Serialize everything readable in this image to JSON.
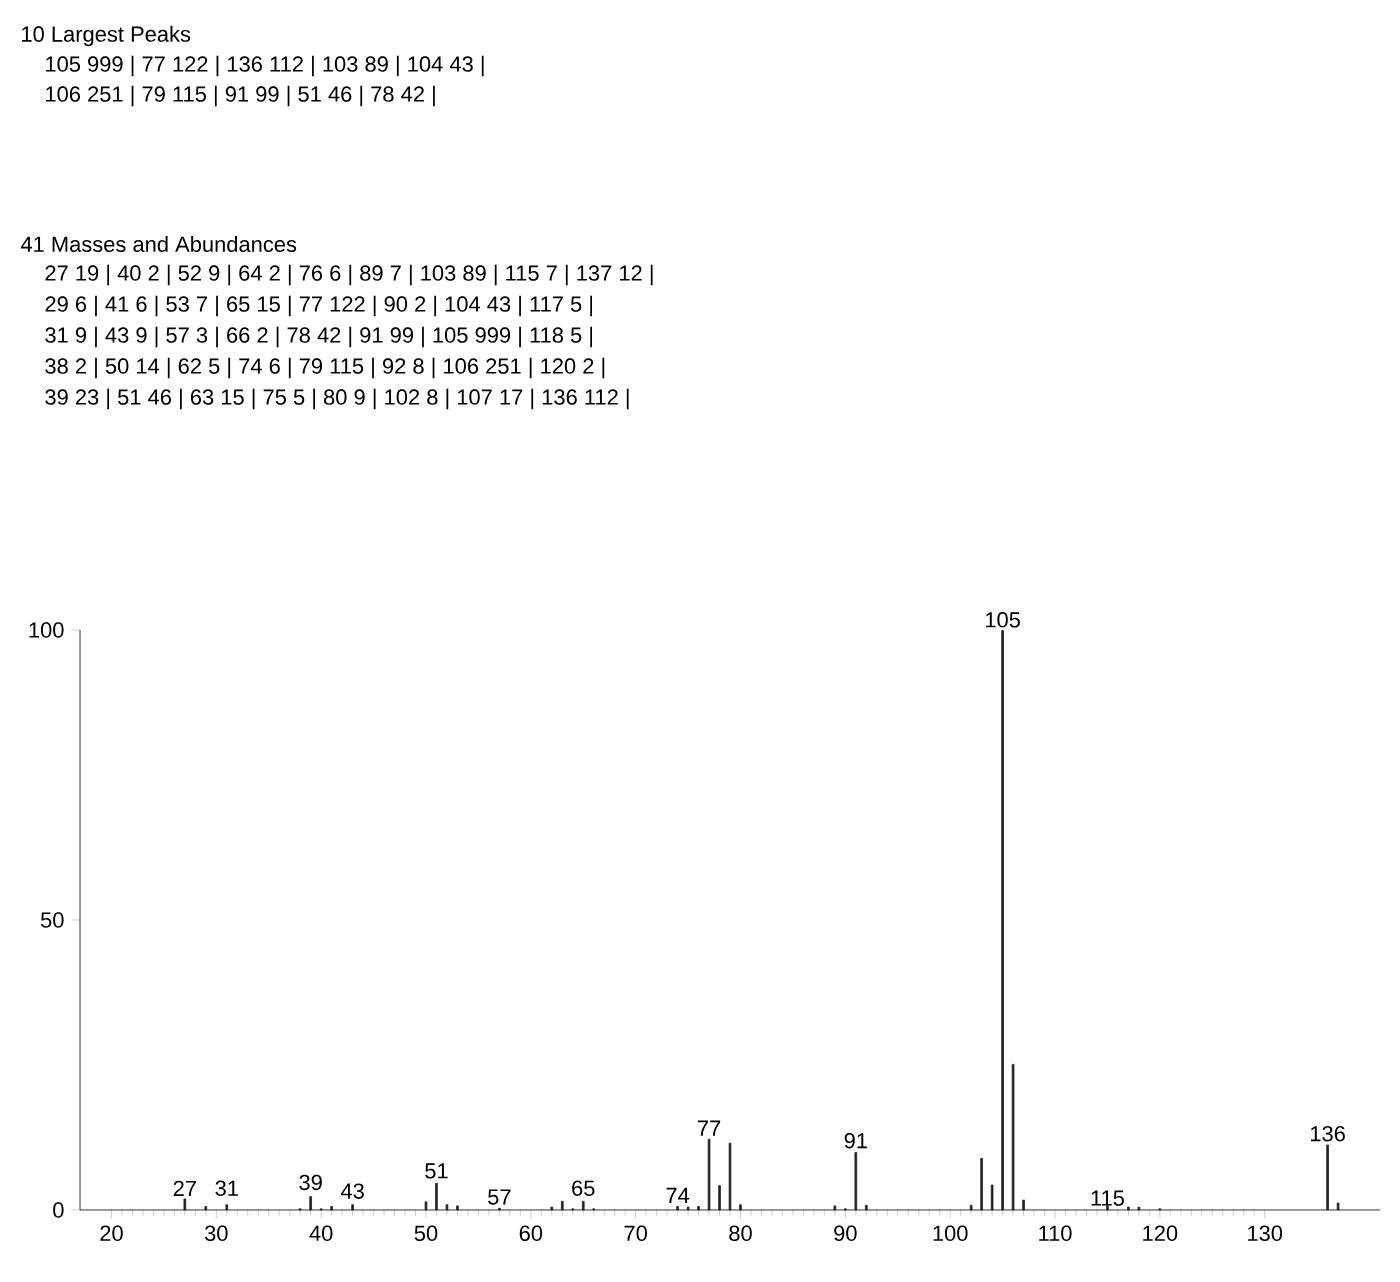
{
  "chart_data": {
    "type": "bar",
    "color": "#222222",
    "x": [
      27,
      29,
      31,
      38,
      39,
      40,
      41,
      43,
      50,
      51,
      52,
      53,
      57,
      62,
      63,
      64,
      65,
      66,
      74,
      75,
      76,
      77,
      78,
      79,
      80,
      89,
      90,
      91,
      92,
      102,
      103,
      104,
      105,
      106,
      107,
      115,
      117,
      118,
      120,
      136,
      137
    ],
    "values": [
      1.9,
      0.6,
      0.9,
      0.2,
      2.3,
      0.2,
      0.6,
      0.9,
      1.4,
      4.6,
      0.9,
      0.7,
      0.3,
      0.5,
      1.5,
      0.2,
      1.5,
      0.2,
      0.6,
      0.5,
      0.6,
      12.2,
      4.2,
      11.5,
      0.9,
      0.7,
      0.2,
      9.9,
      0.8,
      0.8,
      8.9,
      4.3,
      99.9,
      25.1,
      1.7,
      0.7,
      0.5,
      0.5,
      0.2,
      11.2,
      1.2
    ],
    "xlim": [
      17,
      141
    ],
    "ylim": [
      0,
      100
    ],
    "xticks": [
      20,
      30,
      40,
      50,
      60,
      70,
      80,
      90,
      100,
      110,
      120,
      130
    ],
    "yticks": [
      0,
      50,
      100
    ],
    "annotations": [
      "10 Largest Peaks",
      "105 999 |   77 122 |   136 112 |   103 89 |   104 43 |",
      "106 251 |   79 115 |   91 99 |   51 46 |   78 42 |",
      "41   Masses and Abundances",
      "27 19 |   40 2 |   52 9 |   64 2 |   76 6 |   89 7 |   103 89 |   115 7 |   137 12 |",
      "29 6 |   41 6 |   53 7 |   65 15 |   77 122 |   90 2 |   104 43 |   117 5 |",
      "31 9 |   43 9 |   57 3 |   66 2 |   78 42 |   91 99 |   105 999 |   118 5 |",
      "38 2 |   50 14 |   62 5 |   74 6 |   79 115 |   92 8 |   106 251 |   120 2 |",
      "39 23 |   51 46 |   63 15 |   75 5 |   80 9 |   102 8 |   107 17 |   136 112 |",
      {
        "text": "27",
        "x": 27,
        "y": 2
      },
      {
        "text": "31",
        "x": 31,
        "y": 2
      },
      {
        "text": "39",
        "x": 39,
        "y": 3
      },
      {
        "text": "43",
        "x": 43,
        "y": 1.5
      },
      {
        "text": "51",
        "x": 51,
        "y": 5
      },
      {
        "text": "57",
        "x": 57,
        "y": 0.5
      },
      {
        "text": "65",
        "x": 65,
        "y": 2
      },
      {
        "text": "74",
        "x": 74,
        "y": 0.8
      },
      {
        "text": "77",
        "x": 77,
        "y": 12.4
      },
      {
        "text": "91",
        "x": 91,
        "y": 10.2
      },
      {
        "text": "105",
        "x": 105,
        "y": 100
      },
      {
        "text": "115",
        "x": 115,
        "y": 0.3
      },
      {
        "text": "136",
        "x": 136,
        "y": 11.4
      }
    ]
  }
}
